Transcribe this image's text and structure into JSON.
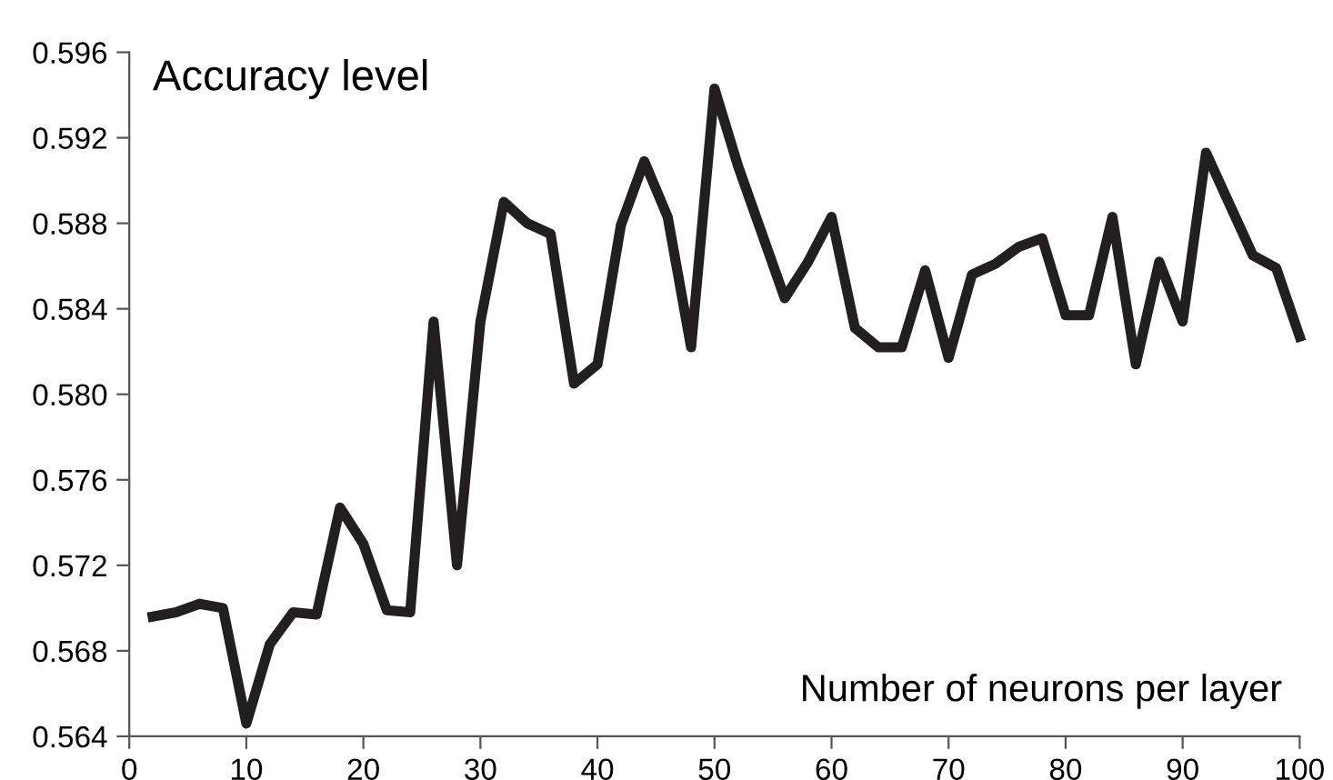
{
  "chart_data": {
    "type": "line",
    "xlabel": "Number of neurons per layer",
    "ylabel": "Accuracy level",
    "x": [
      2,
      4,
      6,
      8,
      10,
      12,
      14,
      16,
      18,
      20,
      22,
      24,
      26,
      28,
      30,
      32,
      34,
      36,
      38,
      40,
      42,
      44,
      46,
      48,
      50,
      52,
      54,
      56,
      58,
      60,
      62,
      64,
      66,
      68,
      70,
      72,
      74,
      76,
      78,
      80,
      82,
      84,
      86,
      88,
      90,
      92,
      94,
      96,
      98,
      100
    ],
    "series": [
      {
        "color": "#231f20",
        "values": [
          0.5696,
          0.5698,
          0.5702,
          0.57,
          0.5646,
          0.5683,
          0.5698,
          0.5697,
          0.5747,
          0.573,
          0.5699,
          0.5698,
          0.5834,
          0.572,
          0.5834,
          0.589,
          0.588,
          0.5875,
          0.5805,
          0.5814,
          0.5879,
          0.5909,
          0.5883,
          0.5822,
          0.5943,
          0.5907,
          0.5876,
          0.5845,
          0.5862,
          0.5883,
          0.5831,
          0.5822,
          0.5822,
          0.5858,
          0.5817,
          0.5856,
          0.5861,
          0.5869,
          0.5873,
          0.5837,
          0.5837,
          0.5883,
          0.5814,
          0.5862,
          0.5834,
          0.5913,
          0.5889,
          0.5865,
          0.5859,
          0.5827
        ]
      }
    ],
    "xlim": [
      0,
      100
    ],
    "xticks": [
      0,
      10,
      20,
      30,
      40,
      50,
      60,
      70,
      80,
      90,
      100
    ],
    "ylim": [
      0.564,
      0.596
    ],
    "yticks": [
      {
        "value": 0.564,
        "label": "0.564"
      },
      {
        "value": 0.568,
        "label": "0.568"
      },
      {
        "value": 0.572,
        "label": "0.572"
      },
      {
        "value": 0.576,
        "label": "0.576"
      },
      {
        "value": 0.58,
        "label": "0.580"
      },
      {
        "value": 0.584,
        "label": "0.584"
      },
      {
        "value": 0.588,
        "label": "0.588"
      },
      {
        "value": 0.592,
        "label": "0.592"
      },
      {
        "value": 0.596,
        "label": "0.596"
      }
    ],
    "grid": false,
    "marker": "none",
    "line_style": "solid"
  }
}
